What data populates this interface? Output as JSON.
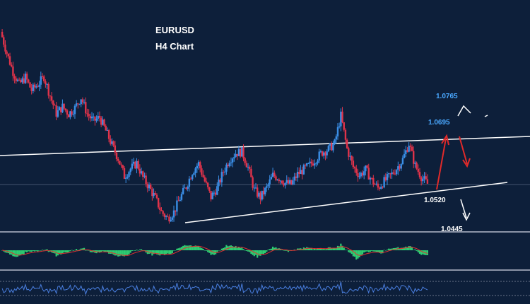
{
  "chart_data": {
    "type": "candlestick",
    "title": "EURUSD",
    "subtitle": "H4 Chart",
    "colors": {
      "background": "#0d1f3a",
      "bull": "#3a8ee6",
      "bear": "#e0334a",
      "trendline": "#ffffff",
      "level_blue": "#4aa8ff",
      "level_white": "#ffffff",
      "arrow_red": "#e02a2a",
      "arrow_white": "#ffffff",
      "osc_positive": "#2ecc71",
      "osc_signal": "#e03030",
      "rsi_line": "#4a7fe0",
      "panel_separator": "#8a93a6"
    },
    "price_levels": [
      {
        "label": "1.0765",
        "color": "blue"
      },
      {
        "label": "1.0695",
        "color": "blue"
      },
      {
        "label": "1.0520",
        "color": "white"
      },
      {
        "label": "1.0445",
        "color": "white"
      }
    ],
    "price_path": [
      1.093,
      1.088,
      1.0835,
      1.0805,
      1.0822,
      1.0791,
      1.0805,
      1.0823,
      1.0778,
      1.0736,
      1.0752,
      1.0735,
      1.0749,
      1.0774,
      1.0735,
      1.0718,
      1.0727,
      1.0695,
      1.0661,
      1.0629,
      1.0587,
      1.0605,
      1.0618,
      1.0584,
      1.0561,
      1.0535,
      1.0502,
      1.0487,
      1.0502,
      1.0535,
      1.0563,
      1.0598,
      1.0617,
      1.0575,
      1.0537,
      1.0559,
      1.0598,
      1.0627,
      1.0642,
      1.0645,
      1.0608,
      1.0554,
      1.0537,
      1.0559,
      1.0589,
      1.0583,
      1.0571,
      1.0568,
      1.0592,
      1.0603,
      1.0614,
      1.0629,
      1.0644,
      1.0651,
      1.0665,
      1.0731,
      1.0652,
      1.0609,
      1.0589,
      1.0603,
      1.0577,
      1.0559,
      1.0575,
      1.0588,
      1.0605,
      1.0627,
      1.0665,
      1.0612,
      1.0586,
      1.0569
    ]
  }
}
